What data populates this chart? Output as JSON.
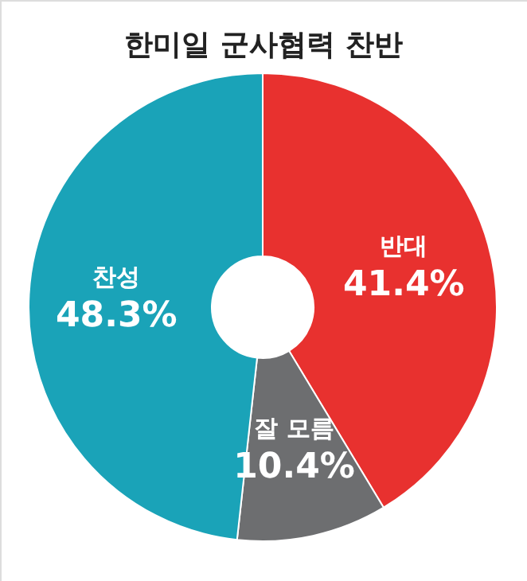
{
  "chart_data": {
    "type": "donut",
    "title": "한미일 군사협력 찬반",
    "categories": [
      "반대",
      "잘 모름",
      "찬성"
    ],
    "values": [
      41.4,
      10.4,
      48.3
    ],
    "colors": [
      "#e8312f",
      "#6d6e70",
      "#1aa3b8"
    ],
    "value_labels": [
      "41.4%",
      "10.4%",
      "48.3%"
    ],
    "legend": false
  }
}
